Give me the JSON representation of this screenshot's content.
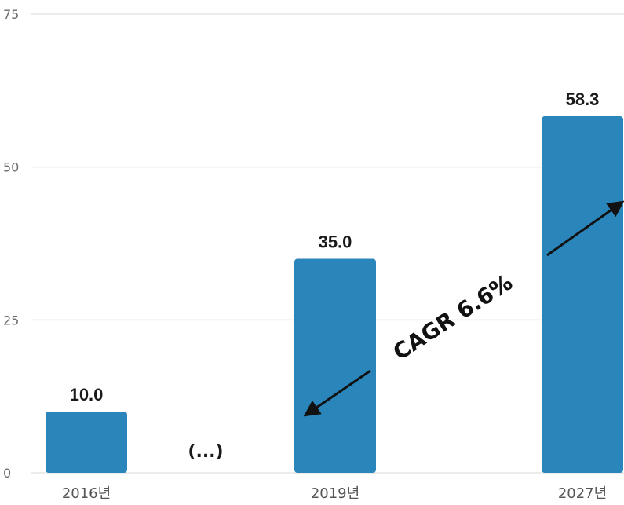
{
  "chart_data": {
    "type": "bar",
    "categories": [
      "2016년",
      "2019년",
      "2027년"
    ],
    "values": [
      10.0,
      35.0,
      58.3
    ],
    "data_labels": [
      "10.0",
      "35.0",
      "58.3"
    ],
    "ylim": [
      0,
      75
    ],
    "yticks": [
      "0",
      "25",
      "50",
      "75"
    ],
    "grid": true,
    "bar_color": "#2a86ba",
    "gap_marker": "(...)",
    "annotation": "CAGR 6.6%"
  }
}
